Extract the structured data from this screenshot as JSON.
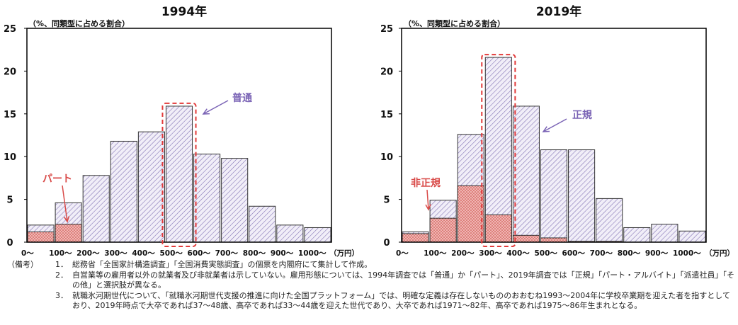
{
  "chart_data": [
    {
      "type": "bar",
      "title": "1994年",
      "ylabel": "（%、同類型に占める割合）",
      "xunit": "（万円）",
      "ylim": [
        0,
        25
      ],
      "yticks": [
        "0",
        "5",
        "10",
        "15",
        "20",
        "25"
      ],
      "categories": [
        "0～",
        "100～",
        "200～",
        "300～",
        "400～",
        "500～",
        "600～",
        "700～",
        "800～",
        "900～",
        "1000～"
      ],
      "series": [
        {
          "name": "普通",
          "values": [
            2.0,
            4.6,
            7.8,
            11.8,
            12.9,
            15.9,
            10.3,
            9.8,
            4.2,
            2.0,
            1.7
          ]
        },
        {
          "name": "パート",
          "values": [
            1.2,
            2.1,
            0,
            0,
            0,
            0,
            0,
            0,
            0,
            0,
            0
          ]
        }
      ],
      "highlight_category": "500～",
      "annotations": [
        "普通",
        "パート"
      ]
    },
    {
      "type": "bar",
      "title": "2019年",
      "ylabel": "（%、同類型に占める割合）",
      "xunit": "（万円）",
      "ylim": [
        0,
        25
      ],
      "yticks": [
        "0",
        "5",
        "10",
        "15",
        "20",
        "25"
      ],
      "categories": [
        "0～",
        "100～",
        "200～",
        "300～",
        "400～",
        "500～",
        "600～",
        "700～",
        "800～",
        "900～",
        "1000～"
      ],
      "series": [
        {
          "name": "正規",
          "values": [
            1.2,
            4.9,
            12.6,
            21.6,
            15.9,
            10.8,
            10.8,
            5.1,
            1.7,
            2.1,
            1.3
          ]
        },
        {
          "name": "非正規",
          "values": [
            1.0,
            2.8,
            6.6,
            3.2,
            0.8,
            0.5,
            0.1,
            0.1,
            0,
            0,
            0
          ]
        }
      ],
      "highlight_category": "300～",
      "annotations": [
        "正規",
        "非正規"
      ]
    }
  ],
  "colors": {
    "regular_hatch": "#7b6bb0",
    "regular_fill": "#f1eef8",
    "nonregular_fill": "#f0b6b3",
    "nonregular_dot": "#c8403b",
    "highlight": "#e23a3a",
    "annotation_purple": "#7a63b5",
    "annotation_red": "#d94b49"
  },
  "notes": {
    "label": "（備考）",
    "items": [
      {
        "num": "1．",
        "text": "総務省「全国家計構造調査」「全国消費実態調査」の個票を内閣府にて集計して作成。"
      },
      {
        "num": "2．",
        "text": "自営業等の雇用者以外の就業者及び非就業者は示していない。雇用形態については、1994年調査では「普通」か「パート」、2019年調査では「正規」「パート・アルバイト」「派遣社員」「その他」と選択肢が異なる。"
      },
      {
        "num": "3．",
        "text": "就職氷河期世代について、「就職氷河期世代支援の推進に向けた全国プラットフォーム」では、明確な定義は存在しないもののおおむね1993～2004年に学校卒業期を迎えた者を指すとしており、2019年時点で大卒であれば37～48歳、高卒であれば33～44歳を迎えた世代であり、大卒であれば1971～82年、高卒であれば1975～86年生まれとなる。"
      }
    ]
  }
}
